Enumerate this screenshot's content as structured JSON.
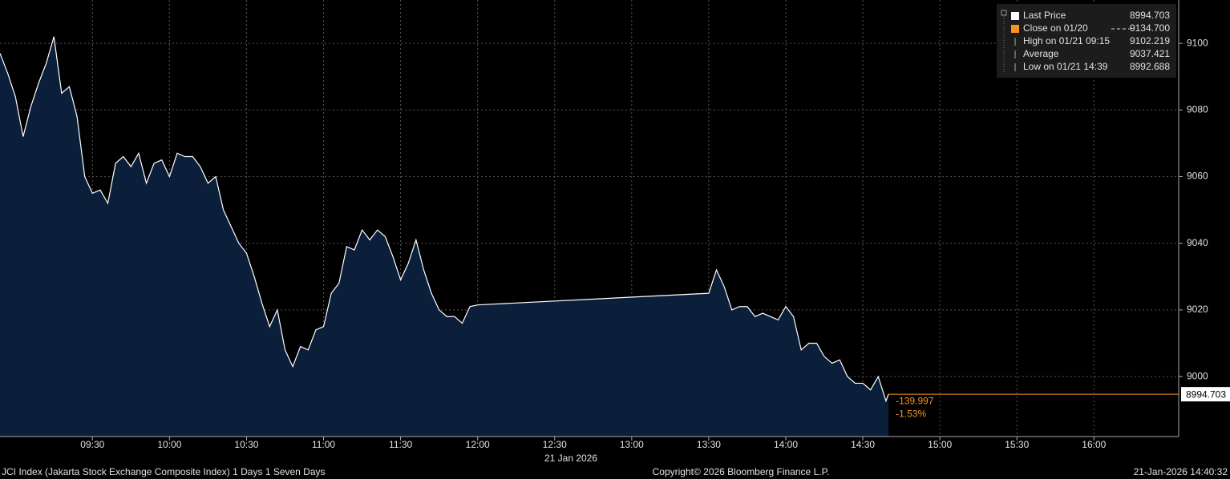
{
  "chart_data": {
    "type": "area",
    "series": [
      {
        "name": "Last Price",
        "color": "#ffffff",
        "fill": "#0b1f3b",
        "x": [
          "08:54",
          "08:57",
          "09:00",
          "09:03",
          "09:06",
          "09:09",
          "09:12",
          "09:15",
          "09:18",
          "09:21",
          "09:24",
          "09:27",
          "09:30",
          "09:33",
          "09:36",
          "09:39",
          "09:42",
          "09:45",
          "09:48",
          "09:51",
          "09:54",
          "09:57",
          "10:00",
          "10:03",
          "10:06",
          "10:09",
          "10:12",
          "10:15",
          "10:18",
          "10:21",
          "10:24",
          "10:27",
          "10:30",
          "10:33",
          "10:36",
          "10:39",
          "10:42",
          "10:45",
          "10:48",
          "10:51",
          "10:54",
          "10:57",
          "11:00",
          "11:03",
          "11:06",
          "11:09",
          "11:12",
          "11:15",
          "11:18",
          "11:21",
          "11:24",
          "11:27",
          "11:30",
          "11:33",
          "11:36",
          "11:39",
          "11:42",
          "11:45",
          "11:48",
          "11:51",
          "11:54",
          "11:57",
          "12:00",
          "13:30",
          "13:33",
          "13:36",
          "13:39",
          "13:42",
          "13:45",
          "13:48",
          "13:51",
          "13:54",
          "13:57",
          "14:00",
          "14:03",
          "14:06",
          "14:09",
          "14:12",
          "14:15",
          "14:18",
          "14:21",
          "14:24",
          "14:27",
          "14:30",
          "14:33",
          "14:36",
          "14:39",
          "14:40"
        ],
        "values": [
          9097,
          9091,
          9084,
          9072,
          9081,
          9088,
          9094,
          9102,
          9085,
          9087,
          9078,
          9060,
          9055,
          9056,
          9052,
          9064,
          9066,
          9063,
          9067,
          9058,
          9064,
          9065,
          9060,
          9067,
          9066,
          9066,
          9063,
          9058,
          9060,
          9050,
          9045,
          9040,
          9037,
          9030,
          9022,
          9015,
          9020,
          9008,
          9003,
          9009,
          9008,
          9014,
          9015,
          9025,
          9028,
          9039,
          9038,
          9044,
          9041,
          9044,
          9042,
          9036,
          9029,
          9034,
          9041,
          9032,
          9025,
          9020,
          9018,
          9018,
          9016,
          9021,
          9021.5,
          9025,
          9032,
          9027,
          9020,
          9021,
          9021,
          9018,
          9019,
          9018,
          9017,
          9021,
          9018,
          9008,
          9010,
          9010,
          9006,
          9004,
          9005,
          9000,
          8998,
          8998,
          8996,
          9000,
          8992.688,
          8994.703
        ]
      }
    ],
    "xlim": [
      "08:54",
      "16:33"
    ],
    "xticks": [
      "09:30",
      "10:00",
      "10:30",
      "11:00",
      "11:30",
      "12:00",
      "12:30",
      "13:00",
      "13:30",
      "14:00",
      "14:30",
      "15:00",
      "15:30",
      "16:00"
    ],
    "xlabel": "21 Jan 2026",
    "ylim": [
      8982,
      9113
    ],
    "yticks": [
      9000,
      9020,
      9040,
      9060,
      9080,
      9100
    ],
    "grid": true,
    "legend": [
      {
        "name": "Last Price",
        "value": "8994.703",
        "color": "#ffffff"
      },
      {
        "name": "Close on 01/20",
        "value": "9134.700",
        "color": "#f7941d"
      },
      {
        "name": "High on 01/21 09:15",
        "value": "9102.219",
        "color": "#aaaaaa"
      },
      {
        "name": "Average",
        "value": "9037.421",
        "color": "#aaaaaa"
      },
      {
        "name": "Low on 01/21 14:39",
        "value": "8992.688",
        "color": "#aaaaaa"
      }
    ],
    "annotations": {
      "change": "-139.997",
      "change_pct": "-1.53%",
      "color": "#f7941d"
    },
    "footer": {
      "left": "JCI Index (Jakarta Stock Exchange Composite Index) 1 Days 1 Seven Days",
      "center": "Copyright© 2026 Bloomberg Finance L.P.",
      "right": "21-Jan-2026 14:40:32"
    }
  }
}
